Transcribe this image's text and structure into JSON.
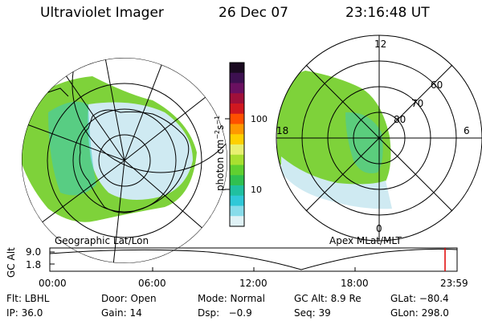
{
  "header": {
    "instrument": "Ultraviolet Imager",
    "date": "26 Dec 07",
    "time": "23:16:48 UT"
  },
  "left_map": {
    "caption": "Geographic Lat/Lon"
  },
  "right_map": {
    "caption": "Apex MLat/MLT",
    "mlt_labels": [
      "12",
      "18",
      "6",
      "0"
    ],
    "lat_labels": [
      "60",
      "70",
      "80"
    ]
  },
  "colorbar": {
    "label_base": "photon cm",
    "label_exp1": "−2",
    "label_mid": "s",
    "label_exp2": "−1",
    "ticks": [
      "100",
      "10"
    ],
    "colors": [
      "#1a0a20",
      "#3d1050",
      "#6a1060",
      "#a0103a",
      "#d01820",
      "#ff5000",
      "#ff9800",
      "#ffd000",
      "#e8f070",
      "#a8e030",
      "#60d030",
      "#30c050",
      "#20c0a0",
      "#30c8d8",
      "#88dcea",
      "#e0f2f6"
    ]
  },
  "gc_alt_plot": {
    "label": "GC Alt",
    "y_ticks": [
      "9.0",
      "1.8"
    ],
    "x_ticks": [
      "00:00",
      "06:00",
      "12:00",
      "18:00",
      "23:59"
    ]
  },
  "footer": {
    "row1": [
      {
        "key": "filter",
        "text": "Flt: LBHL"
      },
      {
        "key": "door",
        "text": "Door: Open"
      },
      {
        "key": "mode",
        "text": "Mode: Normal"
      },
      {
        "key": "gcalt",
        "text": "GC Alt: 8.9 Re"
      },
      {
        "key": "glat",
        "text": "GLat: −80.4"
      }
    ],
    "row2": [
      {
        "key": "ip",
        "text": "IP: 36.0"
      },
      {
        "key": "gain",
        "text": "Gain: 14"
      },
      {
        "key": "dsp",
        "text": "Dsp:   −0.9"
      },
      {
        "key": "seq",
        "text": "Seq: 39"
      },
      {
        "key": "glon",
        "text": "GLon: 298.0"
      }
    ]
  }
}
